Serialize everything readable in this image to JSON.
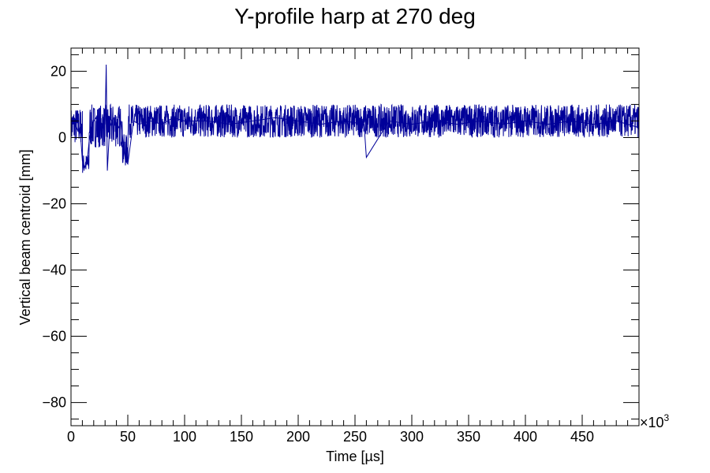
{
  "chart_data": {
    "type": "line",
    "title": "Y-profile harp at 270 deg",
    "xlabel": "Time [µs]",
    "ylabel": "Vertical beam centroid [mm]",
    "x_multiplier": "×10",
    "x_multiplier_exp": "3",
    "xlim": [
      0,
      500
    ],
    "ylim": [
      -87,
      27
    ],
    "x_major_ticks": [
      0,
      50,
      100,
      150,
      200,
      250,
      300,
      350,
      400,
      450
    ],
    "x_tick_labels": [
      "0",
      "50",
      "100",
      "150",
      "200",
      "250",
      "300",
      "350",
      "400",
      "450"
    ],
    "y_major_ticks": [
      20,
      0,
      -20,
      -40,
      -60,
      -80
    ],
    "y_tick_labels": [
      "20",
      "0",
      "−20",
      "−40",
      "−60",
      "−80"
    ],
    "grid": false,
    "legend": "none",
    "series": [
      {
        "color": "#000099",
        "x": [
          0,
          2,
          4,
          6,
          8,
          10,
          12,
          14,
          16,
          18,
          20,
          22,
          24,
          26,
          28,
          30,
          31,
          32,
          34,
          36,
          38,
          40,
          42,
          44,
          46,
          48,
          50,
          55,
          60,
          70,
          80,
          90,
          100,
          120,
          140,
          160,
          180,
          200,
          220,
          240,
          258,
          260,
          280,
          300,
          320,
          340,
          360,
          380,
          400,
          420,
          440,
          460,
          480,
          500
        ],
        "y": [
          3,
          5,
          4,
          2,
          3,
          -7,
          -9,
          -8,
          -1,
          3,
          5,
          6,
          4,
          5,
          3,
          4,
          22,
          -10,
          3,
          5,
          6,
          4,
          3,
          5,
          -2,
          -7,
          -8,
          5,
          4,
          5,
          4,
          6,
          5,
          5,
          4,
          5,
          6,
          5,
          4,
          5,
          4,
          -6,
          5,
          4,
          5,
          4,
          5,
          4,
          5,
          4,
          5,
          4,
          5,
          3
        ],
        "band": [
          {
            "from": 0,
            "to": 10,
            "low": -2,
            "high": 9
          },
          {
            "from": 10,
            "to": 16,
            "low": -11,
            "high": -5
          },
          {
            "from": 16,
            "to": 45,
            "low": -3,
            "high": 10
          },
          {
            "from": 45,
            "to": 50,
            "low": -9,
            "high": 1
          },
          {
            "from": 50,
            "to": 500,
            "low": 0,
            "high": 10
          }
        ]
      }
    ]
  }
}
